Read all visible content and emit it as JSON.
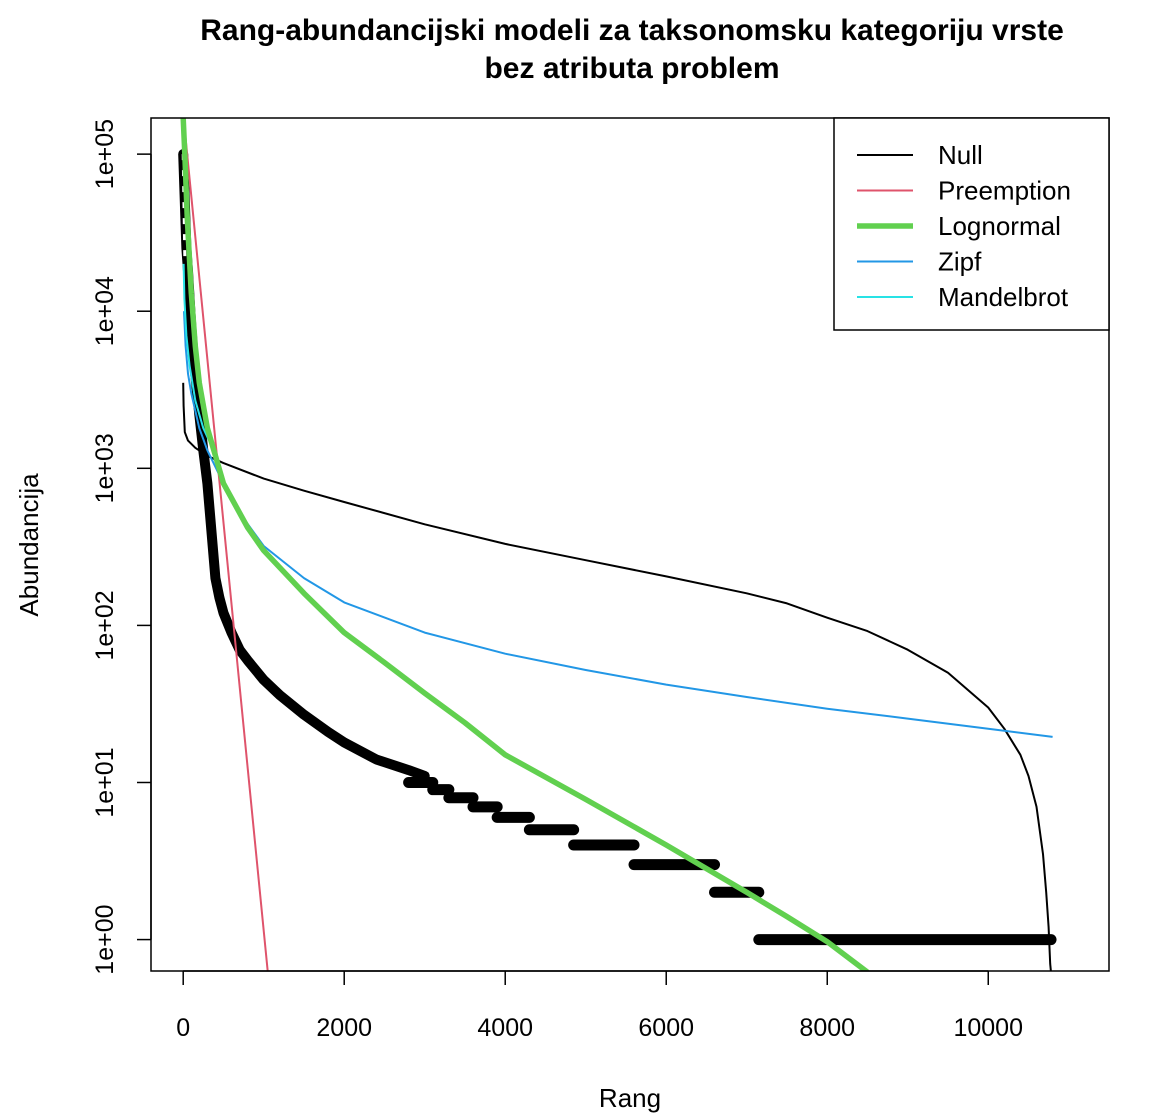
{
  "chart_data": {
    "type": "line",
    "title_line1": "Rang-abundancijski modeli za taksonomsku kategoriju vrste",
    "title_line2": "bez atributa problem",
    "xlabel": "Rang",
    "ylabel": "Abundancija",
    "xlim": [
      -400,
      11500
    ],
    "ylim_log10": [
      -0.2,
      5.23
    ],
    "x_ticks": [
      {
        "value": 0,
        "label": "0"
      },
      {
        "value": 2000,
        "label": "2000"
      },
      {
        "value": 4000,
        "label": "4000"
      },
      {
        "value": 6000,
        "label": "6000"
      },
      {
        "value": 8000,
        "label": "8000"
      },
      {
        "value": 10000,
        "label": "10000"
      }
    ],
    "y_ticks": [
      {
        "value": 1,
        "label": "1e+00"
      },
      {
        "value": 10,
        "label": "1e+01"
      },
      {
        "value": 100,
        "label": "1e+02"
      },
      {
        "value": 1000,
        "label": "1e+03"
      },
      {
        "value": 10000,
        "label": "1e+04"
      },
      {
        "value": 100000,
        "label": "1e+05"
      }
    ],
    "legend": {
      "position": "top-right",
      "entries": [
        {
          "name": "Null",
          "color": "#000000",
          "width": 1.5
        },
        {
          "name": "Preemption",
          "color": "#df536b",
          "width": 1.5
        },
        {
          "name": "Lognormal",
          "color": "#61d04f",
          "width": 5
        },
        {
          "name": "Zipf",
          "color": "#2297e6",
          "width": 1.5
        },
        {
          "name": "Mandelbrot",
          "color": "#28e2e5",
          "width": 1.5
        }
      ]
    },
    "observed": {
      "color": "#000000",
      "points": [
        [
          0,
          100000
        ],
        [
          20,
          50000
        ],
        [
          40,
          25000
        ],
        [
          60,
          18000
        ],
        [
          80,
          12000
        ],
        [
          100,
          8000
        ],
        [
          130,
          5000
        ],
        [
          160,
          3500
        ],
        [
          200,
          2200
        ],
        [
          250,
          1300
        ],
        [
          300,
          800
        ],
        [
          350,
          400
        ],
        [
          400,
          200
        ],
        [
          450,
          150
        ],
        [
          500,
          120
        ],
        [
          600,
          90
        ],
        [
          700,
          70
        ],
        [
          800,
          60
        ],
        [
          1000,
          45
        ],
        [
          1200,
          36
        ],
        [
          1500,
          27
        ],
        [
          1800,
          21
        ],
        [
          2000,
          18
        ],
        [
          2400,
          14
        ],
        [
          2800,
          12
        ],
        [
          3000,
          11
        ]
      ],
      "steps": [
        {
          "value": 10,
          "x_from": 2800,
          "x_to": 3100
        },
        {
          "value": 9,
          "x_from": 3100,
          "x_to": 3300
        },
        {
          "value": 8,
          "x_from": 3300,
          "x_to": 3600
        },
        {
          "value": 7,
          "x_from": 3600,
          "x_to": 3900
        },
        {
          "value": 6,
          "x_from": 3900,
          "x_to": 4300
        },
        {
          "value": 5,
          "x_from": 4300,
          "x_to": 4850
        },
        {
          "value": 4,
          "x_from": 4850,
          "x_to": 5600
        },
        {
          "value": 3,
          "x_from": 5600,
          "x_to": 6600
        },
        {
          "value": 2,
          "x_from": 6600,
          "x_to": 7150
        },
        {
          "value": 1,
          "x_from": 7150,
          "x_to": 10780
        }
      ]
    },
    "series": [
      {
        "name": "Null",
        "color": "#000000",
        "points": [
          [
            0,
            3500
          ],
          [
            5,
            2500
          ],
          [
            20,
            1700
          ],
          [
            60,
            1500
          ],
          [
            150,
            1350
          ],
          [
            300,
            1200
          ],
          [
            500,
            1080
          ],
          [
            1000,
            860
          ],
          [
            1500,
            720
          ],
          [
            2000,
            610
          ],
          [
            3000,
            440
          ],
          [
            4000,
            330
          ],
          [
            5000,
            260
          ],
          [
            6000,
            205
          ],
          [
            7000,
            160
          ],
          [
            7500,
            138
          ],
          [
            8000,
            112
          ],
          [
            8500,
            92
          ],
          [
            9000,
            70
          ],
          [
            9500,
            50
          ],
          [
            10000,
            30
          ],
          [
            10200,
            22
          ],
          [
            10400,
            15
          ],
          [
            10500,
            11
          ],
          [
            10600,
            7
          ],
          [
            10680,
            3.5
          ],
          [
            10720,
            2
          ],
          [
            10750,
            1.2
          ],
          [
            10770,
            0.7
          ],
          [
            10780,
            0.62
          ]
        ]
      },
      {
        "name": "Preemption",
        "color": "#df536b",
        "points": [
          [
            0,
            180000
          ],
          [
            1050,
            0.63
          ]
        ]
      },
      {
        "name": "Lognormal",
        "color": "#61d04f",
        "points": [
          [
            0,
            170000
          ],
          [
            20,
            100000
          ],
          [
            50,
            40000
          ],
          [
            100,
            13000
          ],
          [
            150,
            6000
          ],
          [
            200,
            3500
          ],
          [
            300,
            1800
          ],
          [
            500,
            800
          ],
          [
            800,
            420
          ],
          [
            1000,
            300
          ],
          [
            1500,
            160
          ],
          [
            2000,
            90
          ],
          [
            2500,
            58
          ],
          [
            3000,
            37
          ],
          [
            3500,
            24
          ],
          [
            4000,
            15
          ],
          [
            5000,
            7.8
          ],
          [
            6000,
            4
          ],
          [
            7000,
            2
          ],
          [
            7500,
            1.4
          ],
          [
            8000,
            0.97
          ],
          [
            8500,
            0.62
          ]
        ]
      },
      {
        "name": "Zipf",
        "color": "#2297e6",
        "points": [
          [
            10,
            10000
          ],
          [
            30,
            6000
          ],
          [
            60,
            4000
          ],
          [
            100,
            3000
          ],
          [
            200,
            1800
          ],
          [
            300,
            1300
          ],
          [
            500,
            800
          ],
          [
            700,
            520
          ],
          [
            1000,
            320
          ],
          [
            1500,
            200
          ],
          [
            2000,
            140
          ],
          [
            3000,
            90
          ],
          [
            4000,
            66
          ],
          [
            5000,
            52
          ],
          [
            6000,
            42
          ],
          [
            7000,
            35
          ],
          [
            8000,
            29.5
          ],
          [
            9000,
            25.5
          ],
          [
            10000,
            22
          ],
          [
            10800,
            19.5
          ]
        ]
      },
      {
        "name": "Mandelbrot",
        "color": "#28e2e5",
        "points": [
          [
            5,
            20000
          ],
          [
            15,
            12000
          ],
          [
            40,
            7000
          ],
          [
            80,
            4500
          ],
          [
            150,
            2700
          ],
          [
            250,
            1800
          ],
          [
            350,
            1400
          ]
        ]
      }
    ]
  }
}
